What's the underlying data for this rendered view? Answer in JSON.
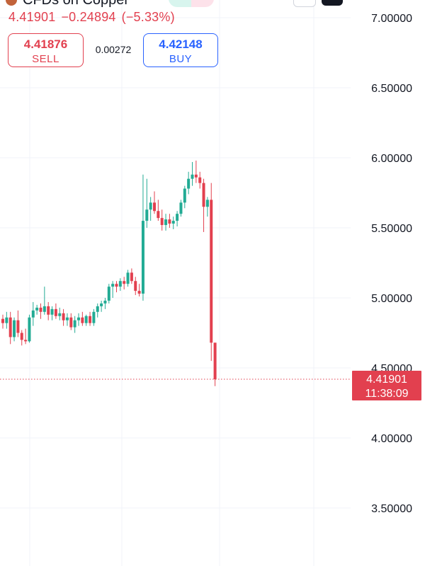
{
  "header": {
    "title": "CFDs on Copper",
    "last_price": "4.41901",
    "change": "−0.24894",
    "change_pct": "(−5.33%)",
    "sell_price": "4.41876",
    "sell_label": "SELL",
    "spread": "0.00272",
    "buy_price": "4.42148",
    "buy_label": "BUY"
  },
  "colors": {
    "up": "#22ab94",
    "down": "#e2404f",
    "grid": "#f0f3fa",
    "axis_text": "#131722",
    "buy": "#2962ff"
  },
  "chart_data": {
    "type": "candlestick",
    "ylim": [
      3.3,
      7.05
    ],
    "y_ticks": [
      "7.00000",
      "6.50000",
      "6.00000",
      "5.50000",
      "5.00000",
      "4.50000",
      "4.00000",
      "3.50000"
    ],
    "y_tick_values": [
      7.0,
      6.5,
      6.0,
      5.5,
      5.0,
      4.5,
      4.0,
      3.5
    ],
    "last_price_label": "4.41901",
    "last_price_value": 4.419,
    "countdown": "11:38:09",
    "candles": [
      [
        4.85,
        4.88,
        4.78,
        4.82
      ],
      [
        4.82,
        4.9,
        4.78,
        4.86
      ],
      [
        4.86,
        4.9,
        4.67,
        4.72
      ],
      [
        4.72,
        4.86,
        4.69,
        4.84
      ],
      [
        4.84,
        4.91,
        4.72,
        4.75
      ],
      [
        4.75,
        4.77,
        4.66,
        4.7
      ],
      [
        4.7,
        4.78,
        4.67,
        4.69
      ],
      [
        4.69,
        4.88,
        4.68,
        4.86
      ],
      [
        4.86,
        4.97,
        4.8,
        4.91
      ],
      [
        4.91,
        4.95,
        4.88,
        4.93
      ],
      [
        4.93,
        4.96,
        4.85,
        4.9
      ],
      [
        4.9,
        5.08,
        4.88,
        4.94
      ],
      [
        4.94,
        4.97,
        4.84,
        4.88
      ],
      [
        4.88,
        4.94,
        4.84,
        4.92
      ],
      [
        4.92,
        4.96,
        4.85,
        4.87
      ],
      [
        4.87,
        4.93,
        4.84,
        4.89
      ],
      [
        4.89,
        4.92,
        4.8,
        4.84
      ],
      [
        4.84,
        4.89,
        4.8,
        4.86
      ],
      [
        4.86,
        4.89,
        4.77,
        4.79
      ],
      [
        4.79,
        4.87,
        4.75,
        4.84
      ],
      [
        4.84,
        4.89,
        4.8,
        4.86
      ],
      [
        4.86,
        4.9,
        4.8,
        4.82
      ],
      [
        4.82,
        4.88,
        4.8,
        4.87
      ],
      [
        4.87,
        4.9,
        4.8,
        4.82
      ],
      [
        4.82,
        4.92,
        4.8,
        4.9
      ],
      [
        4.9,
        4.96,
        4.86,
        4.94
      ],
      [
        4.94,
        4.98,
        4.9,
        4.96
      ],
      [
        4.96,
        5.0,
        4.92,
        4.98
      ],
      [
        4.98,
        5.1,
        4.96,
        5.08
      ],
      [
        5.08,
        5.12,
        5.0,
        5.1
      ],
      [
        5.1,
        5.12,
        5.04,
        5.08
      ],
      [
        5.08,
        5.14,
        5.05,
        5.12
      ],
      [
        5.12,
        5.15,
        5.06,
        5.1
      ],
      [
        5.1,
        5.2,
        5.08,
        5.18
      ],
      [
        5.18,
        5.21,
        5.1,
        5.12
      ],
      [
        5.12,
        5.15,
        5.02,
        5.05
      ],
      [
        5.05,
        5.1,
        5.01,
        5.03
      ],
      [
        5.03,
        5.88,
        4.98,
        5.55
      ],
      [
        5.55,
        5.85,
        5.5,
        5.63
      ],
      [
        5.63,
        5.72,
        5.55,
        5.68
      ],
      [
        5.68,
        5.76,
        5.6,
        5.62
      ],
      [
        5.62,
        5.7,
        5.55,
        5.57
      ],
      [
        5.57,
        5.63,
        5.48,
        5.52
      ],
      [
        5.52,
        5.6,
        5.48,
        5.56
      ],
      [
        5.56,
        5.6,
        5.5,
        5.53
      ],
      [
        5.53,
        5.58,
        5.49,
        5.55
      ],
      [
        5.55,
        5.62,
        5.51,
        5.6
      ],
      [
        5.6,
        5.7,
        5.58,
        5.68
      ],
      [
        5.68,
        5.8,
        5.64,
        5.78
      ],
      [
        5.78,
        5.9,
        5.74,
        5.85
      ],
      [
        5.85,
        5.97,
        5.8,
        5.88
      ],
      [
        5.88,
        5.98,
        5.82,
        5.86
      ],
      [
        5.86,
        5.9,
        5.78,
        5.82
      ],
      [
        5.82,
        5.85,
        5.47,
        5.65
      ],
      [
        5.65,
        5.72,
        5.58,
        5.7
      ],
      [
        5.7,
        5.82,
        4.55,
        4.68
      ],
      [
        4.68,
        4.68,
        4.37,
        4.419
      ]
    ]
  }
}
